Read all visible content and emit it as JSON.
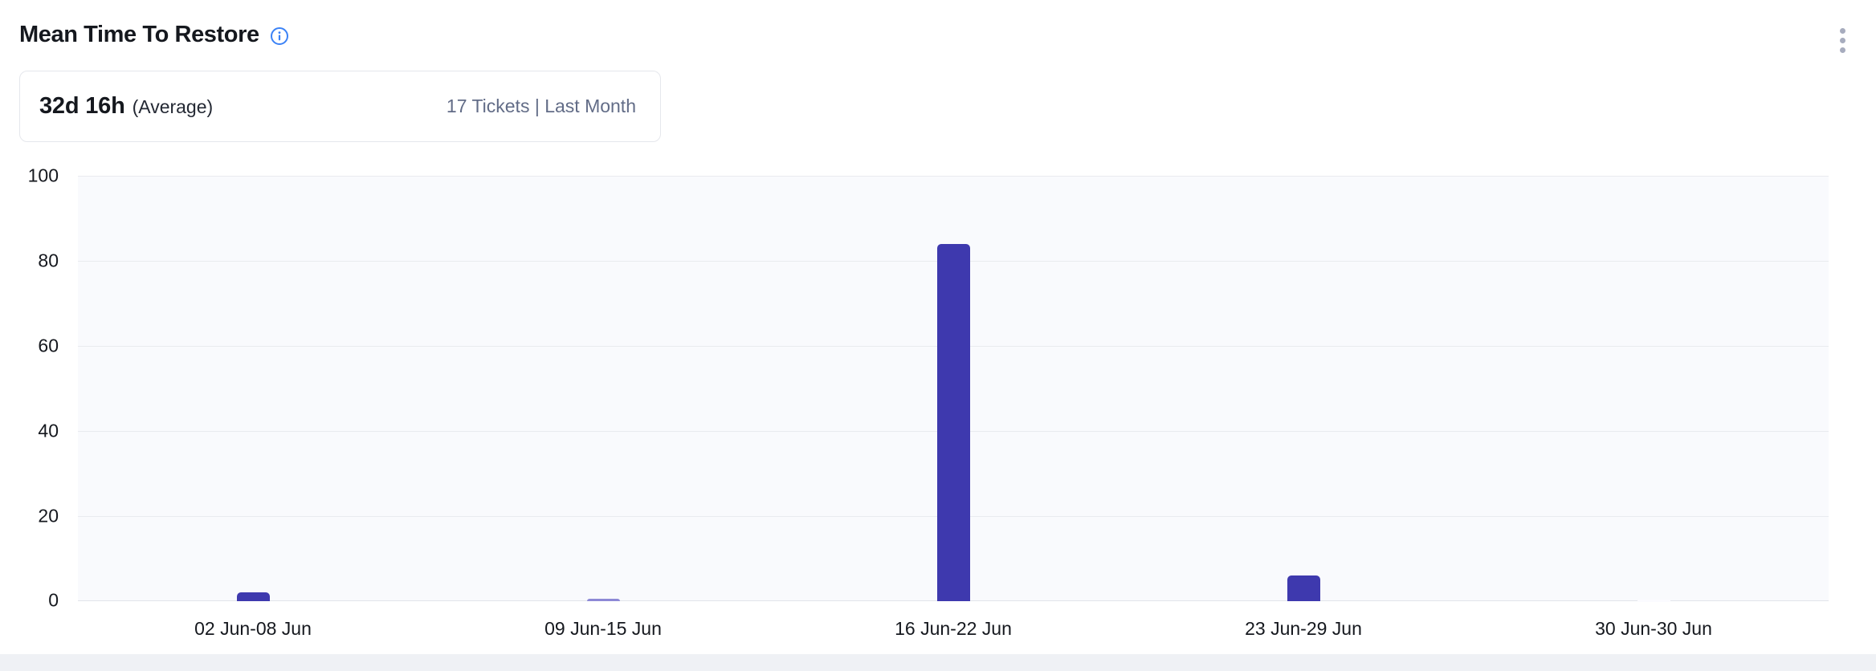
{
  "header": {
    "title": "Mean Time To Restore"
  },
  "summary": {
    "value": "32d 16h",
    "suffix": "(Average)",
    "meta": "17 Tickets | Last Month"
  },
  "colors": {
    "bar": "#3e39ae",
    "bar_thin": "#8d89d6",
    "bar_zero_notch": "#fbfbff",
    "accent_info": "#3b82f6",
    "plot_bg": "#f9fafd",
    "gridline": "#e9ebef",
    "text_dark": "#15181e",
    "text_muted": "#626c87",
    "kebab_dot": "#a7acbe"
  },
  "chart_data": {
    "type": "bar",
    "categories": [
      "02 Jun-08 Jun",
      "09 Jun-15 Jun",
      "16 Jun-22 Jun",
      "23 Jun-29 Jun",
      "30 Jun-30 Jun"
    ],
    "values": [
      2,
      0.6,
      84,
      6,
      0
    ],
    "title": "Mean Time To Restore",
    "xlabel": "",
    "ylabel": "",
    "ylim": [
      0,
      100
    ],
    "yticks": [
      0,
      20,
      40,
      60,
      80,
      100
    ],
    "grid": true,
    "legend": false
  }
}
